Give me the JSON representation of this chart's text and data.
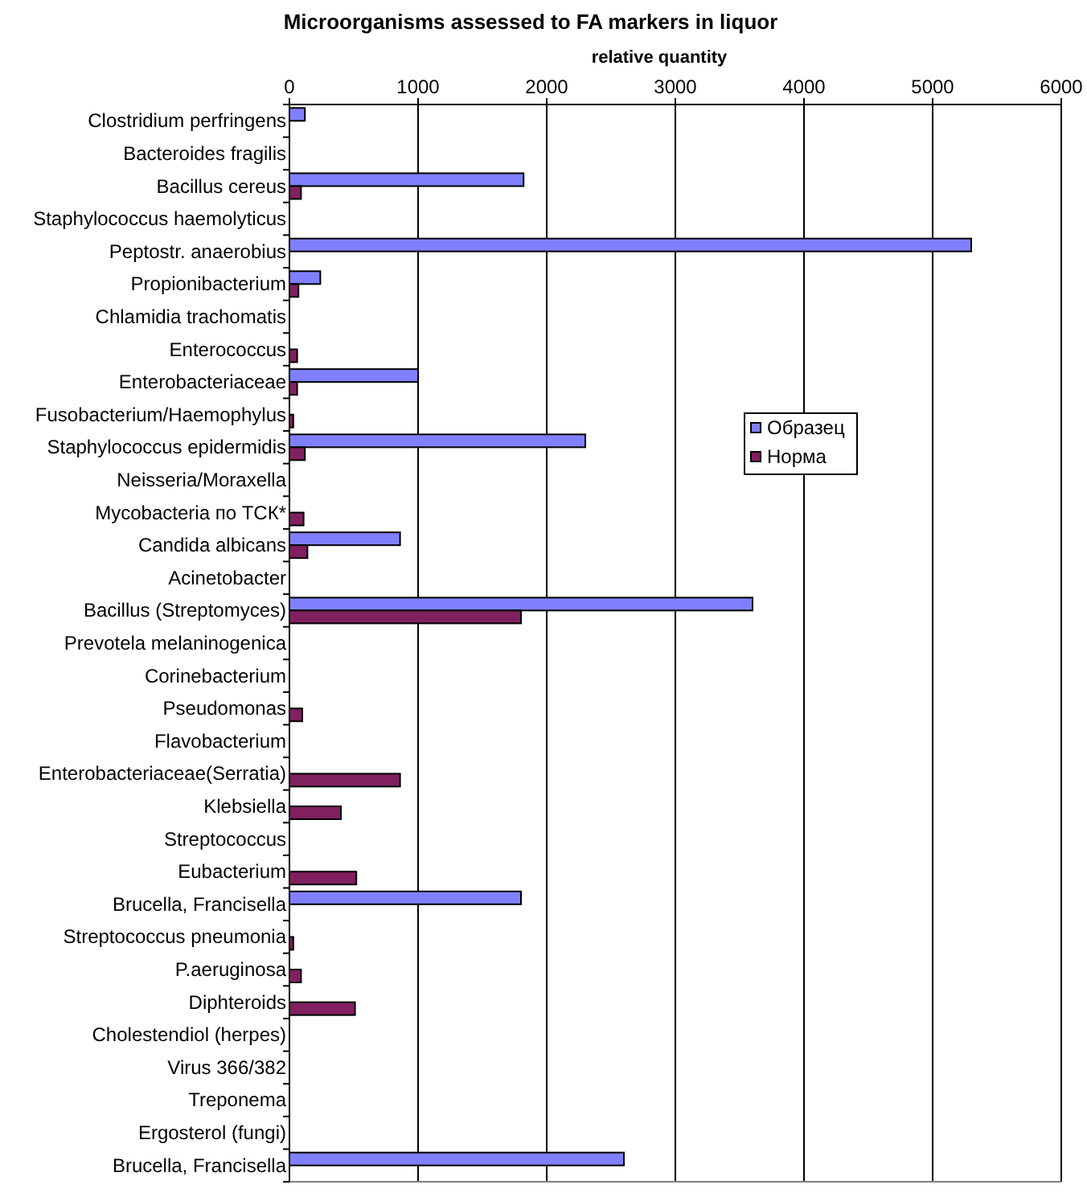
{
  "chart_data": {
    "type": "bar",
    "orientation": "horizontal",
    "title": "Microorganisms assessed to FA markers in liquor",
    "xlabel": "relative quantity",
    "categories": [
      "Clostridium perfringens",
      "Bacteroides fragilis",
      "Bacillus cereus",
      "Staphylococcus haemolyticus",
      "Peptostr. anaerobius",
      "Propionibacterium",
      "Chlamidia trachomatis",
      "Enterococcus",
      "Enterobacteriaceae",
      "Fusobacterium/Haemophylus",
      "Staphylococcus epidermidis",
      "Neisseria/Moraxella",
      "Mycobacteria по ТСК*",
      "Candida albicans",
      "Acinetobacter",
      "Bacillus (Streptomyces)",
      "Prevotela melaninogenica",
      "Corinebacterium",
      "Pseudomonas",
      "Flavobacterium",
      "Enterobacteriaceae(Serratia)",
      "Klebsiella",
      "Streptococcus",
      "Eubacterium",
      "Brucella, Francisella",
      "Streptococcus pneumonia",
      "P.aeruginosa",
      "Diphteroids",
      "Cholestendiol (herpes)",
      "Virus 366/382",
      "Treponema",
      "Ergosterol (fungi)",
      "Brucella, Francisella"
    ],
    "series": [
      {
        "name": "Образец",
        "color": "#8080ff",
        "values": [
          120,
          null,
          1820,
          null,
          5300,
          240,
          null,
          null,
          1000,
          null,
          2300,
          null,
          null,
          860,
          null,
          3600,
          null,
          null,
          null,
          null,
          null,
          null,
          null,
          null,
          1800,
          null,
          null,
          null,
          null,
          null,
          null,
          null,
          2600
        ]
      },
      {
        "name": "Норма",
        "color": "#802060",
        "values": [
          null,
          null,
          90,
          null,
          null,
          70,
          null,
          60,
          60,
          30,
          120,
          null,
          110,
          140,
          null,
          1800,
          null,
          null,
          100,
          null,
          860,
          400,
          null,
          520,
          null,
          30,
          90,
          510,
          null,
          null,
          null,
          null,
          null
        ]
      }
    ],
    "xlim": [
      0,
      6000
    ],
    "xticks": [
      0,
      1000,
      2000,
      3000,
      4000,
      5000,
      6000
    ],
    "grid": "x",
    "legend": "right"
  }
}
